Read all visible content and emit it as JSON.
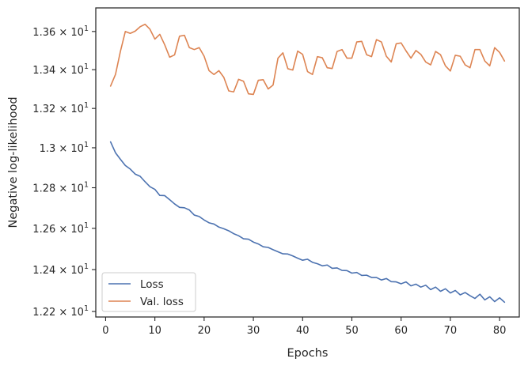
{
  "chart_data": {
    "type": "line",
    "title": "",
    "xlabel": "Epochs",
    "ylabel": "Negative log-likelihood",
    "xlim": [
      -2,
      84
    ],
    "ylim": [
      12.174,
      13.725
    ],
    "yscale": "log",
    "grid": false,
    "legend_position": "lower left",
    "x_ticks": [
      {
        "value": 0,
        "label": "0"
      },
      {
        "value": 10,
        "label": "10"
      },
      {
        "value": 20,
        "label": "20"
      },
      {
        "value": 30,
        "label": "30"
      },
      {
        "value": 40,
        "label": "40"
      },
      {
        "value": 50,
        "label": "50"
      },
      {
        "value": 60,
        "label": "60"
      },
      {
        "value": 70,
        "label": "70"
      },
      {
        "value": 80,
        "label": "80"
      }
    ],
    "y_ticks": [
      {
        "value": 12.2,
        "mantissa": "1.22",
        "base": "10",
        "exp": "1"
      },
      {
        "value": 12.4,
        "mantissa": "1.24",
        "base": "10",
        "exp": "1"
      },
      {
        "value": 12.6,
        "mantissa": "1.26",
        "base": "10",
        "exp": "1"
      },
      {
        "value": 12.8,
        "mantissa": "1.28",
        "base": "10",
        "exp": "1"
      },
      {
        "value": 13.0,
        "mantissa": "1.3",
        "base": "10",
        "exp": "1"
      },
      {
        "value": 13.2,
        "mantissa": "1.32",
        "base": "10",
        "exp": "1"
      },
      {
        "value": 13.4,
        "mantissa": "1.34",
        "base": "10",
        "exp": "1"
      },
      {
        "value": 13.6,
        "mantissa": "1.36",
        "base": "10",
        "exp": "1"
      }
    ],
    "series": [
      {
        "name": "Loss",
        "color": "#4c72b0",
        "x": [
          1,
          2,
          3,
          4,
          5,
          6,
          7,
          8,
          9,
          10,
          11,
          12,
          13,
          14,
          15,
          16,
          17,
          18,
          19,
          20,
          21,
          22,
          23,
          24,
          25,
          26,
          27,
          28,
          29,
          30,
          31,
          32,
          33,
          34,
          35,
          36,
          37,
          38,
          39,
          40,
          41,
          42,
          43,
          44,
          45,
          46,
          47,
          48,
          49,
          50,
          51,
          52,
          53,
          54,
          55,
          56,
          57,
          58,
          59,
          60,
          61,
          62,
          63,
          64,
          65,
          66,
          67,
          68,
          69,
          70,
          71,
          72,
          73,
          74,
          75,
          76,
          77,
          78,
          79,
          80,
          81
        ],
        "values": [
          13.03,
          12.975,
          12.942,
          12.911,
          12.893,
          12.868,
          12.857,
          12.83,
          12.805,
          12.792,
          12.762,
          12.761,
          12.741,
          12.72,
          12.703,
          12.701,
          12.69,
          12.665,
          12.658,
          12.641,
          12.627,
          12.621,
          12.606,
          12.598,
          12.588,
          12.574,
          12.564,
          12.549,
          12.547,
          12.533,
          12.524,
          12.51,
          12.507,
          12.496,
          12.486,
          12.476,
          12.475,
          12.466,
          12.455,
          12.445,
          12.45,
          12.435,
          12.428,
          12.418,
          12.422,
          12.406,
          12.408,
          12.396,
          12.395,
          12.383,
          12.386,
          12.372,
          12.373,
          12.362,
          12.362,
          12.35,
          12.357,
          12.342,
          12.341,
          12.332,
          12.341,
          12.322,
          12.33,
          12.316,
          12.325,
          12.304,
          12.316,
          12.296,
          12.308,
          12.288,
          12.3,
          12.279,
          12.29,
          12.275,
          12.262,
          12.282,
          12.255,
          12.27,
          12.247,
          12.265,
          12.244
        ]
      },
      {
        "name": "Val. loss",
        "color": "#dd8452",
        "x": [
          1,
          2,
          3,
          4,
          5,
          6,
          7,
          8,
          9,
          10,
          11,
          12,
          13,
          14,
          15,
          16,
          17,
          18,
          19,
          20,
          21,
          22,
          23,
          24,
          25,
          26,
          27,
          28,
          29,
          30,
          31,
          32,
          33,
          34,
          35,
          36,
          37,
          38,
          39,
          40,
          41,
          42,
          43,
          44,
          45,
          46,
          47,
          48,
          49,
          50,
          51,
          52,
          53,
          54,
          55,
          56,
          57,
          58,
          59,
          60,
          61,
          62,
          63,
          64,
          65,
          66,
          67,
          68,
          69,
          70,
          71,
          72,
          73,
          74,
          75,
          76,
          77,
          78,
          79,
          80,
          81
        ],
        "values": [
          13.315,
          13.375,
          13.495,
          13.6,
          13.59,
          13.602,
          13.625,
          13.638,
          13.612,
          13.56,
          13.585,
          13.53,
          13.465,
          13.477,
          13.575,
          13.58,
          13.515,
          13.505,
          13.515,
          13.47,
          13.395,
          13.375,
          13.395,
          13.36,
          13.29,
          13.285,
          13.35,
          13.34,
          13.275,
          13.272,
          13.345,
          13.348,
          13.3,
          13.32,
          13.46,
          13.488,
          13.405,
          13.398,
          13.497,
          13.48,
          13.39,
          13.375,
          13.468,
          13.462,
          13.41,
          13.406,
          13.495,
          13.505,
          13.46,
          13.46,
          13.545,
          13.548,
          13.478,
          13.468,
          13.557,
          13.545,
          13.47,
          13.44,
          13.535,
          13.54,
          13.498,
          13.46,
          13.5,
          13.48,
          13.44,
          13.425,
          13.495,
          13.478,
          13.42,
          13.393,
          13.475,
          13.47,
          13.425,
          13.41,
          13.505,
          13.505,
          13.445,
          13.42,
          13.515,
          13.49,
          13.445
        ]
      }
    ]
  }
}
